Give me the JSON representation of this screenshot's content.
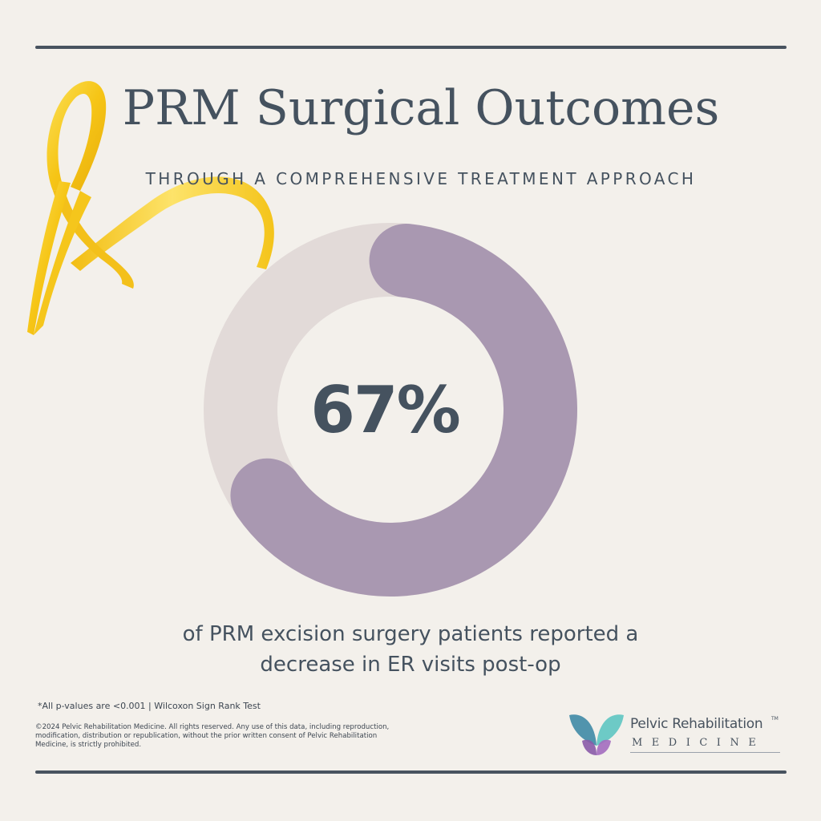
{
  "header": {
    "title": "PRM Surgical Outcomes",
    "subtitle": "THROUGH A COMPREHENSIVE TREATMENT APPROACH"
  },
  "chart_data": {
    "type": "pie",
    "variant": "donut",
    "value_percent": 67,
    "center_label": "67%",
    "colors": {
      "filled": "#a998b1",
      "remaining": "#e2dad8"
    }
  },
  "caption": {
    "line1": "of PRM excision surgery patients reported a",
    "line2": "decrease in ER visits  post-op"
  },
  "footer": {
    "footnote": "*All p-values are <0.001 | Wilcoxon Sign Rank Test",
    "copyright": "©2024 Pelvic Rehabilitation Medicine. All rights reserved.  Any use of this data, including reproduction, modification, distribution or republication, without the prior written consent of Pelvic Rehabilitation Medicine, is strictly prohibited."
  },
  "logo": {
    "name": "Pelvic Rehabilitation",
    "trademark": "TM",
    "subtitle": "MEDICINE"
  },
  "decor": {
    "ribbon_icon": "awareness-ribbon-icon",
    "ribbon_color": "#f7c81e",
    "rule_color": "#48535f",
    "background_color": "#f3f0eb"
  }
}
